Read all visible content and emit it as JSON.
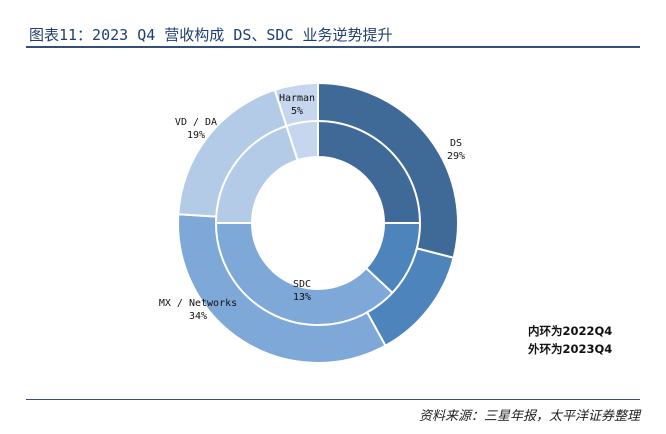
{
  "title": "图表11：2023 Q4 营收构成 DS、SDC 业务逆势提升",
  "source": "资料来源：三星年报，太平洋证券整理",
  "notes": {
    "inner": "内环为2022Q4",
    "outer": "外环为2023Q4"
  },
  "chart_data": {
    "type": "pie",
    "subtype": "doughnut-two-rings",
    "categories": [
      "DS",
      "SDC",
      "MX / Networks",
      "VD / DA",
      "Harman"
    ],
    "series": [
      {
        "name": "2023Q4",
        "ring": "outer",
        "values": [
          29,
          13,
          34,
          19,
          5
        ],
        "labels": [
          "29%",
          "13%",
          "34%",
          "19%",
          "5%"
        ]
      },
      {
        "name": "2022Q4",
        "ring": "inner",
        "values": [
          25,
          12,
          38,
          20,
          5
        ]
      }
    ],
    "colors": [
      "#3f6a98",
      "#4c84bb",
      "#7ea8d8",
      "#b4cbe8",
      "#c5d6ee"
    ]
  }
}
